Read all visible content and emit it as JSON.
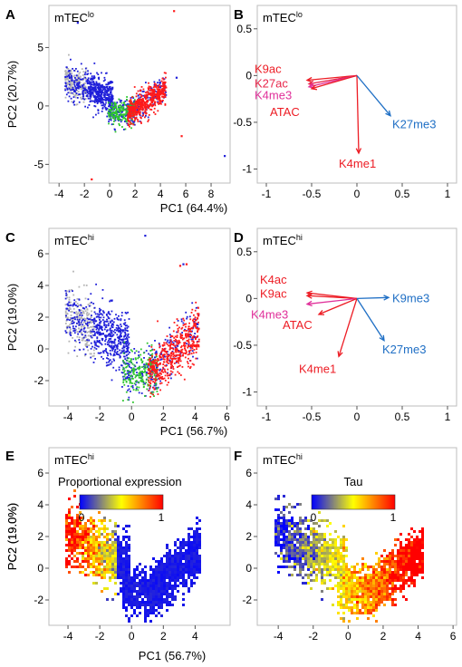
{
  "colors": {
    "activating": "#ed1c24",
    "k27ac": "#e8254a",
    "k4me3": "#e0309a",
    "repressive": "#1f6fc5",
    "scatter_grey": "#b4b4b4",
    "scatter_blue": "#1f1fd9",
    "scatter_green": "#2fc62f",
    "scatter_red": "#ff1a1a"
  },
  "chart_data": [
    {
      "panel": "A",
      "type": "scatter",
      "cell_label": "mTEC",
      "cell_sup": "lo",
      "xlabel": "PC1 (64.4%)",
      "ylabel": "PC2 (20.7%)",
      "xlim": [
        -4.8,
        9.5
      ],
      "ylim": [
        -6.6,
        8.6
      ],
      "xticks": [
        "-4",
        "-2",
        "0",
        "2",
        "4",
        "6",
        "8"
      ],
      "yticks": [
        "-5",
        "0",
        "5"
      ],
      "series_colors": [
        "grey",
        "blue",
        "green",
        "red"
      ],
      "distribution": "V-shaped cloud: grey/blue left arm from PC1 -4 to 0 at PC2 0 to 3, green center near PC1 1, red dense cluster near PC1 2-4, PC2 -1 to 1.5",
      "outliers": [
        [
          -2.6,
          7.2
        ],
        [
          5.0,
          8.2
        ],
        [
          5.2,
          2.5
        ],
        [
          5.6,
          -2.5
        ],
        [
          9.0,
          -4.2
        ],
        [
          -1.5,
          -6.2
        ]
      ]
    },
    {
      "panel": "B",
      "type": "biplot",
      "cell_label": "mTEC",
      "cell_sup": "lo",
      "xlim": [
        -1.1,
        1.1
      ],
      "ylim": [
        -1.15,
        0.75
      ],
      "xticks": [
        "-1",
        "-0.5",
        "0",
        "0.5",
        "1"
      ],
      "yticks": [
        "-1",
        "-0.5",
        "0",
        "0.5"
      ],
      "arrows": [
        {
          "label": "K9ac",
          "x": -0.55,
          "y": -0.05,
          "color": "activating"
        },
        {
          "label": "K27ac",
          "x": -0.53,
          "y": -0.09,
          "color": "k27ac"
        },
        {
          "label": "K4me3",
          "x": -0.53,
          "y": -0.12,
          "color": "k4me3"
        },
        {
          "label": "ATAC",
          "x": -0.5,
          "y": -0.14,
          "color": "activating"
        },
        {
          "label": "K4me1",
          "x": 0.02,
          "y": -0.83,
          "color": "activating"
        },
        {
          "label": "K27me3",
          "x": 0.37,
          "y": -0.43,
          "color": "repressive"
        }
      ]
    },
    {
      "panel": "C",
      "type": "scatter",
      "cell_label": "mTEC",
      "cell_sup": "hi",
      "xlabel": "PC1 (56.7%)",
      "ylabel": "PC2 (19.0%)",
      "xlim": [
        -5.2,
        6.2
      ],
      "ylim": [
        -3.6,
        7.6
      ],
      "xticks": [
        "-4",
        "-2",
        "0",
        "2",
        "4",
        "6"
      ],
      "yticks": [
        "-2",
        "0",
        "2",
        "4",
        "6"
      ],
      "series_colors": [
        "grey",
        "blue",
        "green",
        "red"
      ],
      "distribution": "V-shaped cloud: grey arm from PC1 -5 to -2 at PC2 0 to 4, blue spread PC1 -3 to 3, green center PC1 0-1, red cluster PC1 1-4 at PC2 -2 to 2",
      "outliers": [
        [
          0.8,
          7.2
        ],
        [
          3.0,
          5.3
        ],
        [
          3.2,
          5.4
        ],
        [
          3.4,
          5.4
        ]
      ]
    },
    {
      "panel": "D",
      "type": "biplot",
      "cell_label": "mTEC",
      "cell_sup": "hi",
      "xlim": [
        -1.1,
        1.1
      ],
      "ylim": [
        -1.15,
        0.75
      ],
      "xticks": [
        "-1",
        "-0.5",
        "0",
        "0.5",
        "1"
      ],
      "yticks": [
        "-1",
        "-0.5",
        "0",
        "0.5"
      ],
      "arrows": [
        {
          "label": "K4ac",
          "x": -0.55,
          "y": 0.06,
          "color": "activating"
        },
        {
          "label": "K9ac",
          "x": -0.55,
          "y": 0.03,
          "color": "activating"
        },
        {
          "label": "K4me3",
          "x": -0.55,
          "y": -0.06,
          "color": "k4me3"
        },
        {
          "label": "ATAC",
          "x": -0.42,
          "y": -0.17,
          "color": "activating"
        },
        {
          "label": "K4me1",
          "x": -0.2,
          "y": -0.62,
          "color": "activating"
        },
        {
          "label": "K9me3",
          "x": 0.35,
          "y": 0.01,
          "color": "repressive"
        },
        {
          "label": "K27me3",
          "x": 0.3,
          "y": -0.45,
          "color": "repressive"
        }
      ]
    },
    {
      "panel": "E",
      "type": "heatmap",
      "cell_label": "mTEC",
      "cell_sup": "hi",
      "ylabel": "PC2 (19.0%)",
      "xlim": [
        -5.2,
        6.2
      ],
      "ylim": [
        -3.6,
        7.6
      ],
      "xticks": [
        "-4",
        "-2",
        "0",
        "2",
        "4"
      ],
      "yticks": [
        "-2",
        "0",
        "2",
        "4",
        "6"
      ],
      "colorbar_title": "Proportional expression",
      "colorbar_min": "0",
      "colorbar_max": "1",
      "colorbar_colors": [
        "#0000ff",
        "#ffff00",
        "#ff0000"
      ],
      "distribution": "High values (yellow/red) on left arm PC1 < -1, blue elsewhere"
    },
    {
      "panel": "F",
      "type": "heatmap",
      "cell_label": "mTEC",
      "cell_sup": "hi",
      "ylabel": "PC2 (19.0%)",
      "xlim": [
        -5.2,
        6.2
      ],
      "ylim": [
        -3.6,
        7.6
      ],
      "xticks": [
        "-4",
        "-2",
        "0",
        "2",
        "4",
        "6"
      ],
      "yticks": [
        "-2",
        "0",
        "2",
        "4",
        "6"
      ],
      "colorbar_title": "Tau",
      "colorbar_min": "0",
      "colorbar_max": "1",
      "colorbar_colors": [
        "#0000ff",
        "#ffff00",
        "#ff0000"
      ],
      "distribution": "Low values (blue) on left arm, high (red) on right arm PC1 > 2"
    }
  ],
  "shared_xlabel": "PC1 (56.7%)"
}
